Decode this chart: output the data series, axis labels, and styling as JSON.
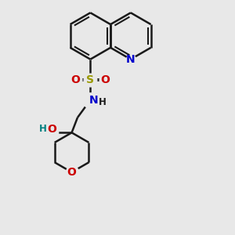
{
  "background_color": "#e8e8e8",
  "bond_color": "#1a1a1a",
  "N_color": "#0000cc",
  "O_color": "#cc0000",
  "S_color": "#999900",
  "OH_color": "#008080",
  "figsize": [
    3.0,
    3.0
  ],
  "dpi": 100,
  "xlim": [
    0,
    10
  ],
  "ylim": [
    0,
    10
  ]
}
